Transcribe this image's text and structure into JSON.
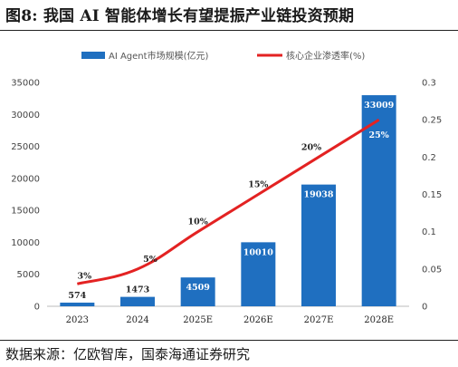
{
  "header": {
    "title": "图8:  我国 AI 智能体增长有望提振产业链投资预期"
  },
  "footer": {
    "source": "数据来源：亿欧智库，国泰海通证券研究"
  },
  "colors": {
    "bar": "#1f6fc0",
    "line": "#e32222"
  },
  "chart_data": {
    "type": "bar",
    "categories": [
      "2023",
      "2024",
      "2025E",
      "2026E",
      "2027E",
      "2028E"
    ],
    "series": [
      {
        "name": "AI Agent市场规模(亿元)",
        "type": "bar",
        "axis": "left",
        "values": [
          574,
          1473,
          4509,
          10010,
          19038,
          33009
        ],
        "labels": [
          "574",
          "1473",
          "4509",
          "10010",
          "19038",
          "33009"
        ]
      },
      {
        "name": "核心企业渗透率(%)",
        "type": "line",
        "axis": "right",
        "values": [
          0.03,
          0.05,
          0.1,
          0.15,
          0.2,
          0.25
        ],
        "labels": [
          "3%",
          "5%",
          "10%",
          "15%",
          "20%",
          "25%"
        ]
      }
    ],
    "y_left": {
      "min": 0,
      "max": 35000,
      "ticks": [
        "0",
        "5000",
        "10000",
        "15000",
        "20000",
        "25000",
        "30000",
        "35000"
      ]
    },
    "y_right": {
      "min": 0,
      "max": 0.3,
      "ticks": [
        "0",
        "0.05",
        "0.1",
        "0.15",
        "0.2",
        "0.25",
        "0.3"
      ]
    },
    "legend": "top-center",
    "grid": false
  }
}
